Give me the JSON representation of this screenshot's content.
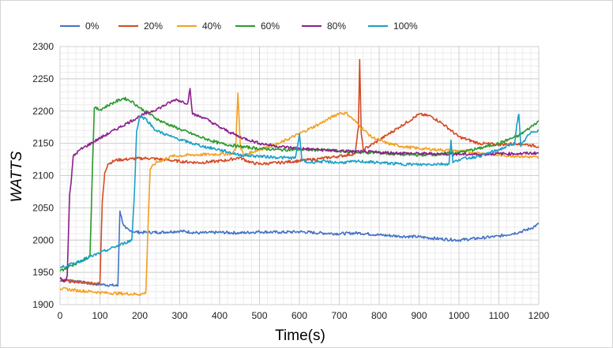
{
  "chart_data": {
    "type": "line",
    "title": "",
    "xlabel": "Time(s)",
    "ylabel": "WATTS",
    "xlim": [
      0,
      1200
    ],
    "ylim": [
      1900,
      2300
    ],
    "xticks": [
      0,
      100,
      200,
      300,
      400,
      500,
      600,
      700,
      800,
      900,
      1000,
      1100,
      1200
    ],
    "yticks": [
      1900,
      1950,
      2000,
      2050,
      2100,
      2150,
      2200,
      2250,
      2300
    ],
    "grid": true,
    "legend_position": "top-left",
    "series": [
      {
        "name": "0%",
        "color": "#4472c4",
        "points": [
          [
            0,
            1940
          ],
          [
            20,
            1938
          ],
          [
            50,
            1935
          ],
          [
            80,
            1932
          ],
          [
            110,
            1931
          ],
          [
            130,
            1930
          ],
          [
            145,
            1929
          ],
          [
            150,
            2045
          ],
          [
            158,
            2025
          ],
          [
            165,
            2018
          ],
          [
            175,
            2014
          ],
          [
            200,
            2012
          ],
          [
            250,
            2012
          ],
          [
            300,
            2014
          ],
          [
            350,
            2011
          ],
          [
            400,
            2012
          ],
          [
            450,
            2011
          ],
          [
            500,
            2013
          ],
          [
            550,
            2012
          ],
          [
            600,
            2013
          ],
          [
            650,
            2011
          ],
          [
            700,
            2010
          ],
          [
            750,
            2011
          ],
          [
            800,
            2008
          ],
          [
            850,
            2006
          ],
          [
            900,
            2005
          ],
          [
            950,
            2002
          ],
          [
            1000,
            2000
          ],
          [
            1050,
            2003
          ],
          [
            1100,
            2006
          ],
          [
            1150,
            2012
          ],
          [
            1180,
            2018
          ],
          [
            1200,
            2025
          ]
        ]
      },
      {
        "name": "20%",
        "color": "#d34a24",
        "points": [
          [
            0,
            1937
          ],
          [
            50,
            1935
          ],
          [
            90,
            1933
          ],
          [
            100,
            1932
          ],
          [
            106,
            2060
          ],
          [
            112,
            2105
          ],
          [
            120,
            2118
          ],
          [
            140,
            2124
          ],
          [
            180,
            2126
          ],
          [
            220,
            2127
          ],
          [
            260,
            2125
          ],
          [
            300,
            2122
          ],
          [
            350,
            2120
          ],
          [
            390,
            2122
          ],
          [
            420,
            2124
          ],
          [
            450,
            2128
          ],
          [
            480,
            2120
          ],
          [
            500,
            2118
          ],
          [
            550,
            2120
          ],
          [
            600,
            2123
          ],
          [
            650,
            2126
          ],
          [
            700,
            2130
          ],
          [
            740,
            2134
          ],
          [
            748,
            2175
          ],
          [
            751,
            2280
          ],
          [
            755,
            2165
          ],
          [
            760,
            2140
          ],
          [
            800,
            2155
          ],
          [
            850,
            2175
          ],
          [
            900,
            2195
          ],
          [
            930,
            2192
          ],
          [
            960,
            2180
          ],
          [
            1000,
            2160
          ],
          [
            1050,
            2150
          ],
          [
            1100,
            2148
          ],
          [
            1150,
            2150
          ],
          [
            1200,
            2145
          ]
        ]
      },
      {
        "name": "40%",
        "color": "#f4a020",
        "points": [
          [
            0,
            1925
          ],
          [
            40,
            1922
          ],
          [
            80,
            1920
          ],
          [
            120,
            1918
          ],
          [
            160,
            1917
          ],
          [
            200,
            1916
          ],
          [
            215,
            1918
          ],
          [
            220,
            2010
          ],
          [
            226,
            2110
          ],
          [
            240,
            2120
          ],
          [
            280,
            2130
          ],
          [
            330,
            2132
          ],
          [
            380,
            2133
          ],
          [
            430,
            2134
          ],
          [
            440,
            2140
          ],
          [
            446,
            2228
          ],
          [
            452,
            2145
          ],
          [
            460,
            2132
          ],
          [
            500,
            2140
          ],
          [
            550,
            2150
          ],
          [
            600,
            2165
          ],
          [
            650,
            2180
          ],
          [
            700,
            2197
          ],
          [
            720,
            2196
          ],
          [
            750,
            2178
          ],
          [
            780,
            2160
          ],
          [
            820,
            2150
          ],
          [
            860,
            2145
          ],
          [
            900,
            2142
          ],
          [
            950,
            2140
          ],
          [
            1000,
            2138
          ],
          [
            1050,
            2135
          ],
          [
            1100,
            2132
          ],
          [
            1150,
            2130
          ],
          [
            1200,
            2128
          ]
        ]
      },
      {
        "name": "60%",
        "color": "#2b9a2b",
        "points": [
          [
            0,
            1952
          ],
          [
            20,
            1958
          ],
          [
            50,
            1967
          ],
          [
            75,
            1975
          ],
          [
            80,
            2085
          ],
          [
            86,
            2205
          ],
          [
            100,
            2202
          ],
          [
            130,
            2212
          ],
          [
            160,
            2220
          ],
          [
            180,
            2215
          ],
          [
            200,
            2205
          ],
          [
            250,
            2185
          ],
          [
            300,
            2172
          ],
          [
            350,
            2160
          ],
          [
            400,
            2150
          ],
          [
            450,
            2145
          ],
          [
            500,
            2142
          ],
          [
            550,
            2140
          ],
          [
            600,
            2140
          ],
          [
            650,
            2140
          ],
          [
            700,
            2138
          ],
          [
            750,
            2136
          ],
          [
            800,
            2135
          ],
          [
            850,
            2133
          ],
          [
            900,
            2132
          ],
          [
            950,
            2133
          ],
          [
            1000,
            2136
          ],
          [
            1050,
            2142
          ],
          [
            1100,
            2150
          ],
          [
            1150,
            2162
          ],
          [
            1180,
            2175
          ],
          [
            1200,
            2185
          ]
        ]
      },
      {
        "name": "80%",
        "color": "#8b1f8b",
        "points": [
          [
            0,
            1942
          ],
          [
            10,
            1935
          ],
          [
            18,
            1945
          ],
          [
            24,
            2070
          ],
          [
            28,
            2090
          ],
          [
            33,
            2130
          ],
          [
            50,
            2140
          ],
          [
            100,
            2158
          ],
          [
            150,
            2175
          ],
          [
            200,
            2192
          ],
          [
            250,
            2205
          ],
          [
            290,
            2218
          ],
          [
            320,
            2212
          ],
          [
            326,
            2235
          ],
          [
            332,
            2195
          ],
          [
            360,
            2190
          ],
          [
            400,
            2175
          ],
          [
            450,
            2160
          ],
          [
            500,
            2150
          ],
          [
            550,
            2145
          ],
          [
            600,
            2142
          ],
          [
            650,
            2140
          ],
          [
            700,
            2138
          ],
          [
            750,
            2137
          ],
          [
            800,
            2136
          ],
          [
            850,
            2135
          ],
          [
            900,
            2134
          ],
          [
            950,
            2134
          ],
          [
            1000,
            2133
          ],
          [
            1050,
            2133
          ],
          [
            1100,
            2134
          ],
          [
            1150,
            2134
          ],
          [
            1200,
            2135
          ]
        ]
      },
      {
        "name": "100%",
        "color": "#1aa0c8",
        "points": [
          [
            0,
            1957
          ],
          [
            40,
            1965
          ],
          [
            80,
            1975
          ],
          [
            120,
            1985
          ],
          [
            160,
            1995
          ],
          [
            180,
            2000
          ],
          [
            187,
            2080
          ],
          [
            192,
            2170
          ],
          [
            200,
            2192
          ],
          [
            215,
            2188
          ],
          [
            240,
            2170
          ],
          [
            280,
            2160
          ],
          [
            320,
            2152
          ],
          [
            360,
            2145
          ],
          [
            400,
            2140
          ],
          [
            450,
            2132
          ],
          [
            500,
            2130
          ],
          [
            550,
            2128
          ],
          [
            590,
            2127
          ],
          [
            600,
            2165
          ],
          [
            606,
            2125
          ],
          [
            620,
            2120
          ],
          [
            650,
            2122
          ],
          [
            700,
            2120
          ],
          [
            750,
            2122
          ],
          [
            800,
            2120
          ],
          [
            850,
            2118
          ],
          [
            900,
            2117
          ],
          [
            950,
            2118
          ],
          [
            975,
            2118
          ],
          [
            980,
            2155
          ],
          [
            985,
            2120
          ],
          [
            1000,
            2125
          ],
          [
            1050,
            2130
          ],
          [
            1100,
            2140
          ],
          [
            1140,
            2150
          ],
          [
            1145,
            2180
          ],
          [
            1150,
            2195
          ],
          [
            1155,
            2145
          ],
          [
            1170,
            2160
          ],
          [
            1185,
            2168
          ],
          [
            1200,
            2170
          ]
        ]
      }
    ]
  }
}
